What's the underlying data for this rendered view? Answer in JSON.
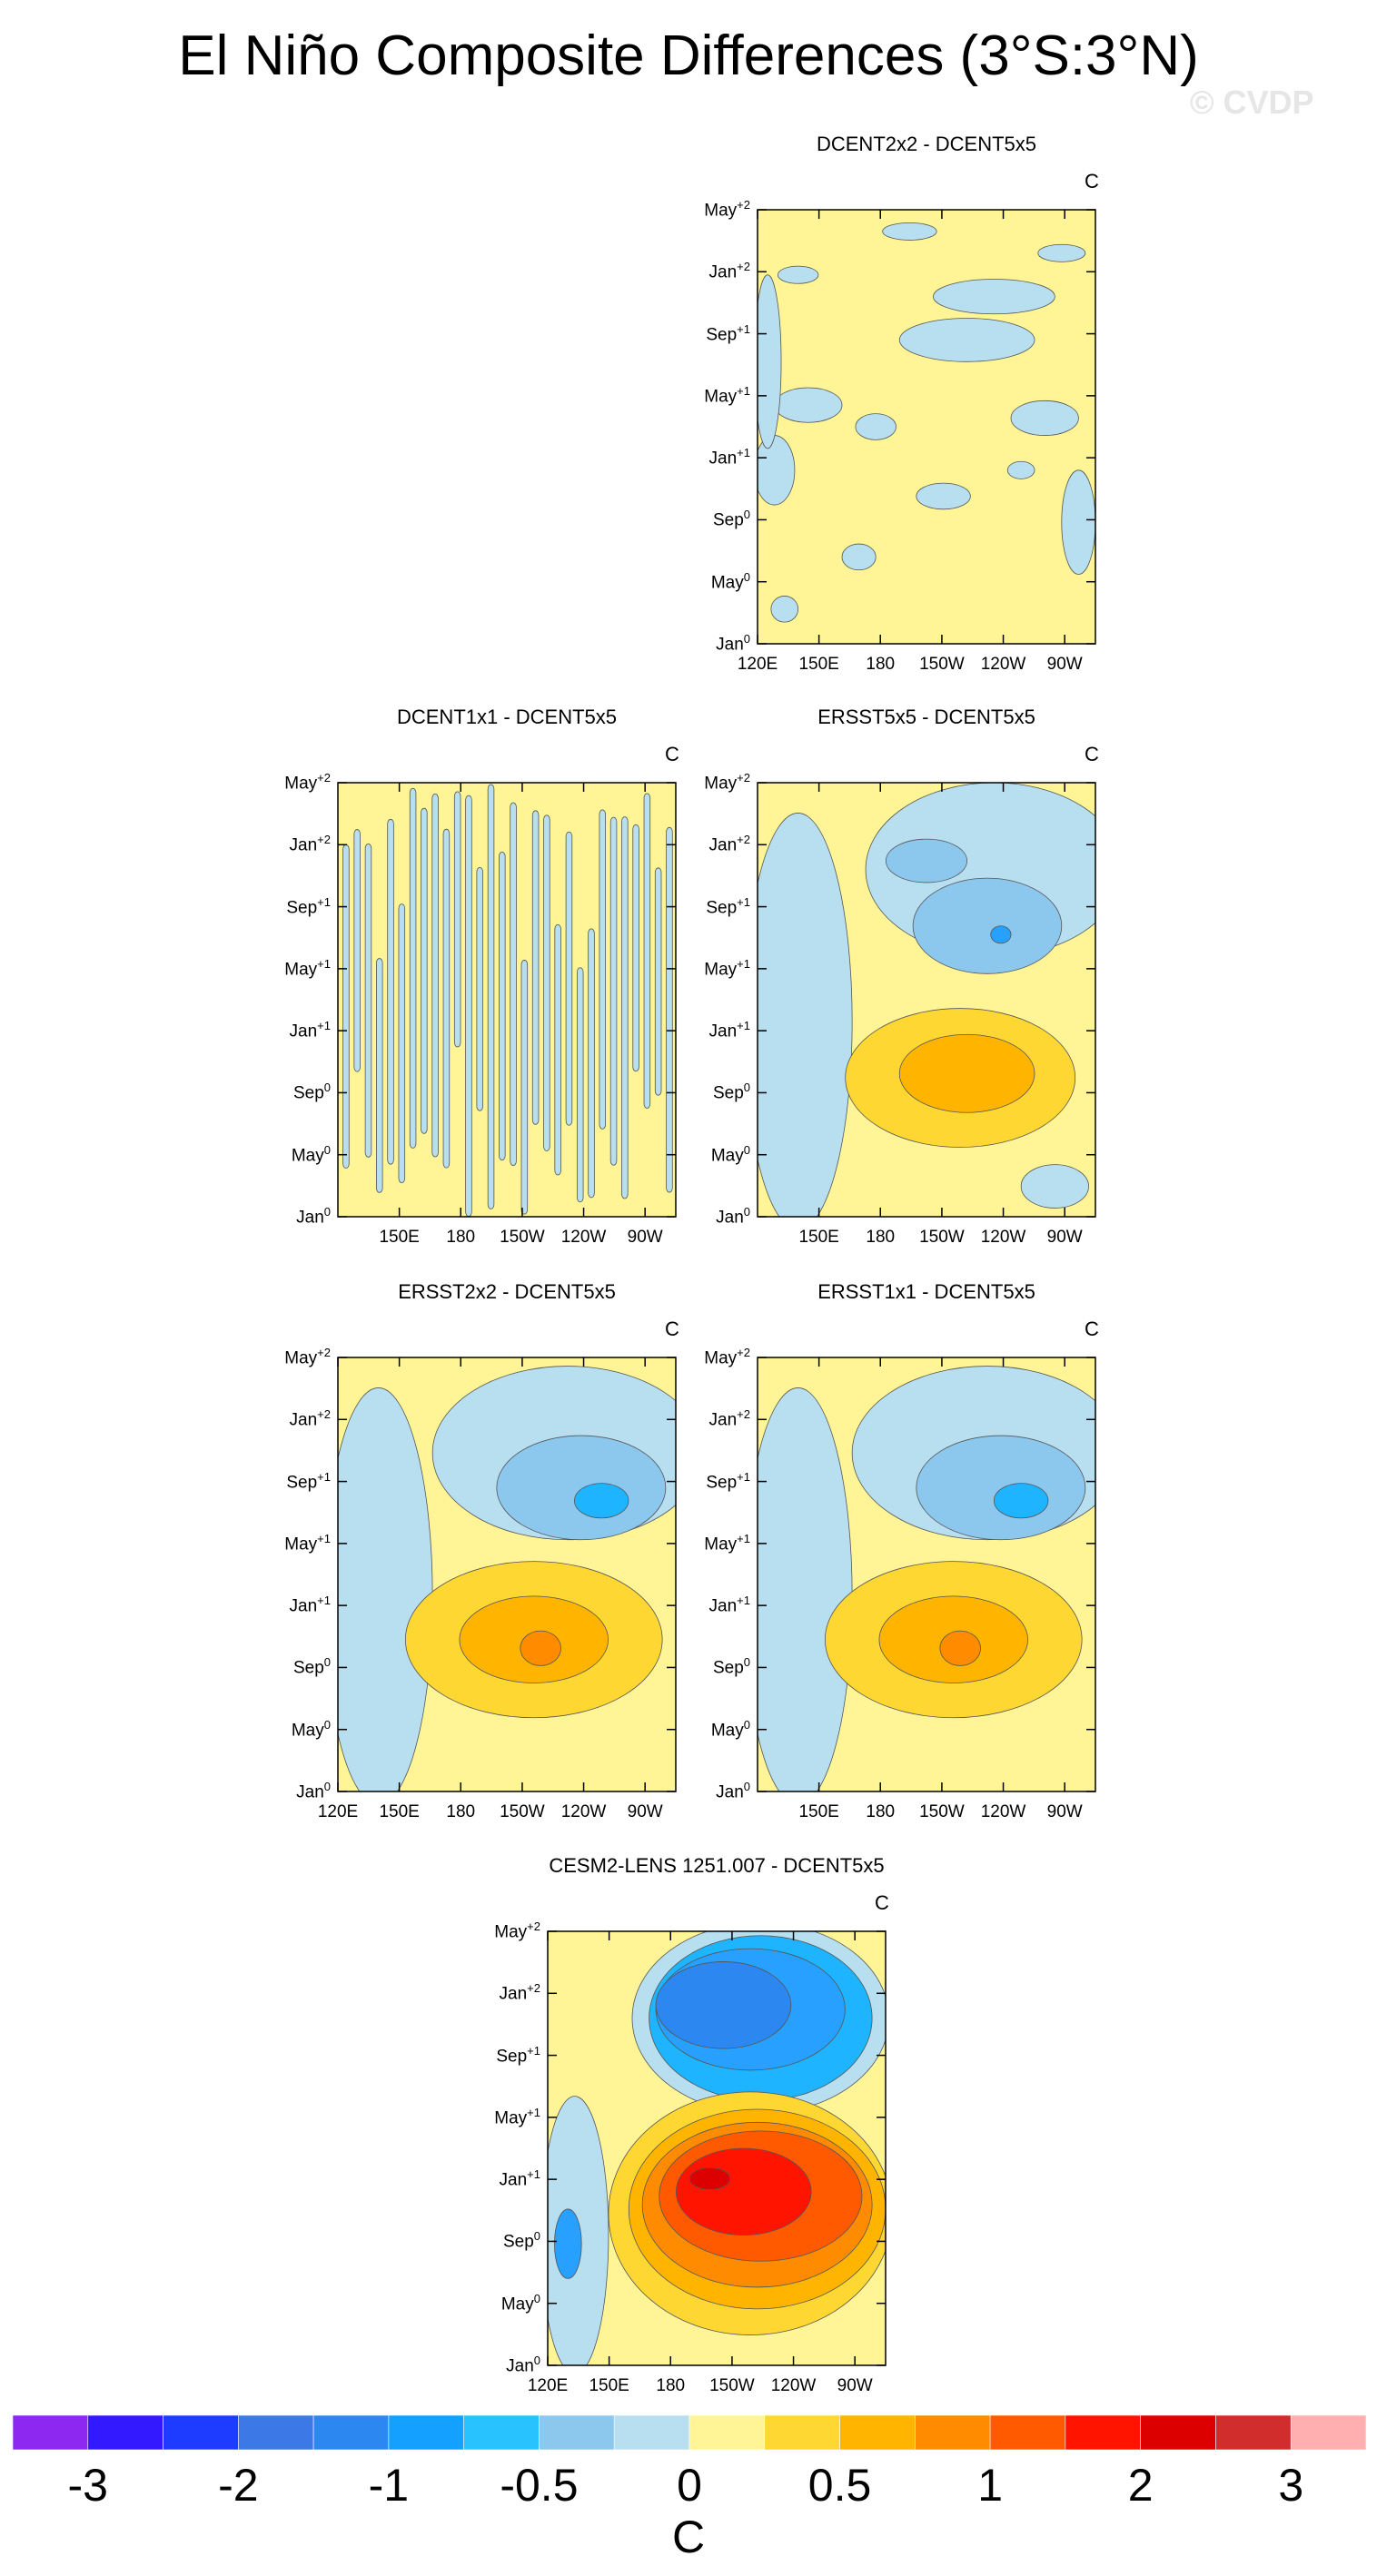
{
  "title": "El Niño Composite Differences (3°S:3°N)",
  "watermark": "© CVDP",
  "units": "C",
  "colors": {
    "blue_light": "#b8dff0",
    "blue_med": "#8cc8ee",
    "blue_sky": "#1eb4ff",
    "blue_a": "#28a0ff",
    "blue_b": "#2d87f0",
    "blue_c": "#2364e6",
    "yellow": "#fff596",
    "yellow2": "#ffd732",
    "orange1": "#ffb400",
    "orange2": "#ff8c00",
    "orange3": "#ff5a00",
    "red": "#ff1400",
    "darkred": "#dc0000"
  },
  "colorbar": {
    "colors": [
      "#8c28f0",
      "#3219ff",
      "#1e3cff",
      "#3c78e6",
      "#2d87f0",
      "#14a0ff",
      "#28c3ff",
      "#8cc8ee",
      "#b8dff0",
      "#fff596",
      "#ffd732",
      "#ffb400",
      "#ff8c00",
      "#ff5a00",
      "#ff1400",
      "#dc0000",
      "#d22d2d",
      "#ffafaf"
    ],
    "labels": [
      "-3",
      "-2",
      "-1",
      "-0.5",
      "0",
      "0.5",
      "1",
      "2",
      "3"
    ],
    "unit": "C"
  },
  "chart_data": [
    {
      "type": "heatmap",
      "title": "DCENT2x2 - DCENT5x5",
      "units": "C",
      "x_ticks": [
        "120E",
        "150E",
        "180",
        "150W",
        "120W",
        "90W"
      ],
      "y_ticks": [
        "Jan0",
        "May0",
        "Sep0",
        "Jan+1",
        "May+1",
        "Sep+1",
        "Jan+2",
        "May+2"
      ],
      "pattern": "mostly 0 to 0.25 (yellow) with scattered -0.25 to 0 (light blue) patches"
    },
    {
      "type": "heatmap",
      "title": "DCENT1x1 - DCENT5x5",
      "units": "C",
      "x_ticks": [
        "150E",
        "180",
        "150W",
        "120W",
        "90W"
      ],
      "y_ticks": [
        "Jan0",
        "May0",
        "Sep0",
        "Jan+1",
        "May+1",
        "Sep+1",
        "Jan+2",
        "May+2"
      ],
      "pattern": "alternating vertical stripes of -0.25 to 0 and 0 to 0.25"
    },
    {
      "type": "heatmap",
      "title": "ERSST5x5 - DCENT5x5",
      "units": "C",
      "x_ticks": [
        "150E",
        "180",
        "150W",
        "120W",
        "90W"
      ],
      "y_ticks": [
        "Jan0",
        "May0",
        "Sep0",
        "Jan+1",
        "May+1",
        "Sep+1",
        "Jan+2",
        "May+2"
      ],
      "pattern": "warm max ~0.5-0.75 near 150W around Sep0-Jan+1; cool ~-0.5 east of 180 in Sep+1-Jan+2"
    },
    {
      "type": "heatmap",
      "title": "ERSST2x2 - DCENT5x5",
      "units": "C",
      "x_ticks": [
        "120E",
        "150E",
        "180",
        "150W",
        "120W",
        "90W"
      ],
      "y_ticks": [
        "Jan0",
        "May0",
        "Sep0",
        "Jan+1",
        "May+1",
        "Sep+1",
        "Jan+2",
        "May+2"
      ],
      "pattern": "warm max ~0.75 near 150W around Sep0-Jan+1; cool ~-0.5 to -0.75 east of 150W in May+1-Jan+2"
    },
    {
      "type": "heatmap",
      "title": "ERSST1x1 - DCENT5x5",
      "units": "C",
      "x_ticks": [
        "150E",
        "180",
        "150W",
        "120W",
        "90W"
      ],
      "y_ticks": [
        "Jan0",
        "May0",
        "Sep0",
        "Jan+1",
        "May+1",
        "Sep+1",
        "Jan+2",
        "May+2"
      ],
      "pattern": "warm max ~0.75 near 150W around Sep0-Jan+1; cool ~-0.5 to -0.75 east of 150W in May+1-Jan+2"
    },
    {
      "type": "heatmap",
      "title": "CESM2-LENS 1251.007 - DCENT5x5",
      "units": "C",
      "x_ticks": [
        "120E",
        "150E",
        "180",
        "150W",
        "120W",
        "90W"
      ],
      "y_ticks": [
        "Jan0",
        "May0",
        "Sep0",
        "Jan+1",
        "May+1",
        "Sep+1",
        "Jan+2",
        "May+2"
      ],
      "pattern": "strong warm ~1-2 across central-east Pacific Jun0-Apr+1; strong cool ~-1.5 to -2 May+1-Jan+2; cool ~-1 near 120E at Sep0"
    }
  ]
}
